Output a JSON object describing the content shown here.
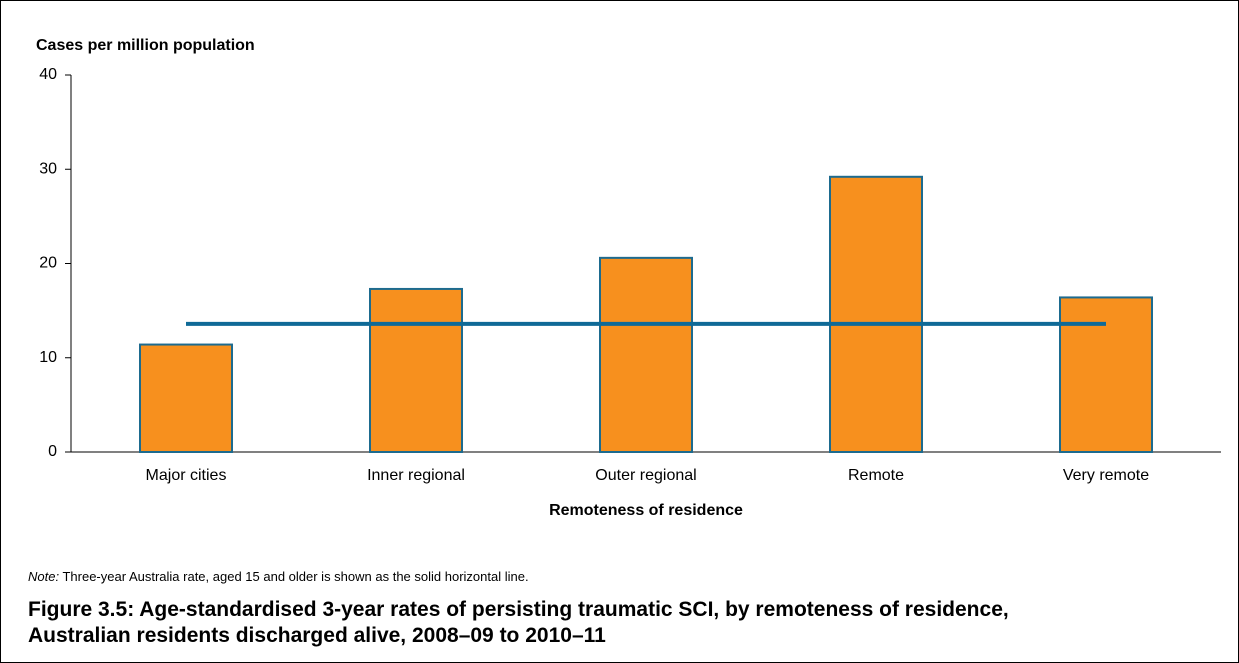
{
  "chart_data": {
    "type": "bar",
    "title": "Figure 3.5: Age-standardised 3-year rates of persisting traumatic SCI, by remoteness of residence, Australian residents discharged alive, 2008–09 to 2010–11",
    "y_label": "Cases per million population",
    "x_label": "Remoteness of residence",
    "note_label": "Note:",
    "note": "Three-year Australia rate, aged 15 and older is shown as the solid horizontal line.",
    "categories": [
      "Major cities",
      "Inner regional",
      "Outer regional",
      "Remote",
      "Very remote"
    ],
    "values": [
      11.4,
      17.3,
      20.6,
      29.2,
      16.4
    ],
    "color": "#f7901e",
    "edge_color": "#1d6b8f",
    "reference_line": {
      "value": 13.6,
      "color": "#0f6a97"
    },
    "ylim": [
      0,
      40
    ],
    "yticks": [
      0,
      10,
      20,
      30,
      40
    ]
  }
}
